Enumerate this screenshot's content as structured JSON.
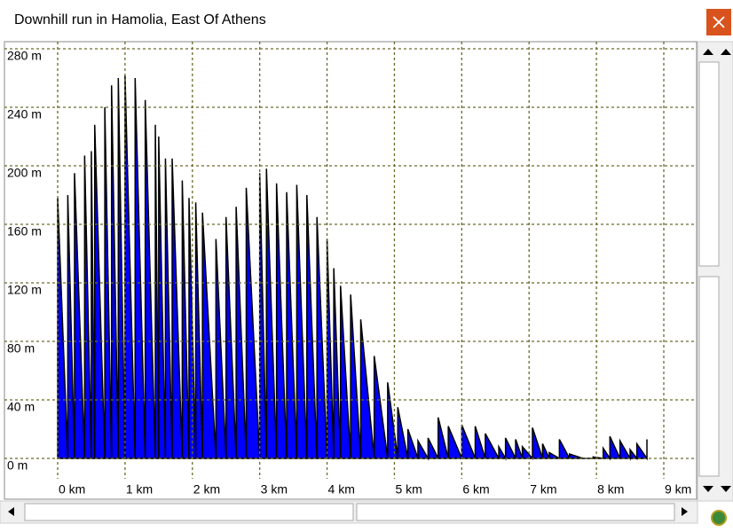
{
  "window_title": "Downhill run in Hamolia, East Of Athens",
  "chart_data": {
    "type": "area",
    "color": "#0000ff",
    "grid": true,
    "x": [
      0,
      0.15,
      0.25,
      0.4,
      0.5,
      0.55,
      0.7,
      0.8,
      0.9,
      1.0,
      1.15,
      1.3,
      1.45,
      1.5,
      1.6,
      1.7,
      1.85,
      1.95,
      2.05,
      2.15,
      2.35,
      2.5,
      2.65,
      2.8,
      3.0,
      3.1,
      3.25,
      3.4,
      3.55,
      3.7,
      3.85,
      4.0,
      4.1,
      4.2,
      4.35,
      4.5,
      4.7,
      4.9,
      5.05,
      5.2,
      5.35,
      5.5,
      5.65,
      5.8,
      6.0,
      6.2,
      6.35,
      6.55,
      6.65,
      6.8,
      6.9,
      7.05,
      7.2,
      7.3,
      7.45,
      7.6,
      7.8,
      7.95,
      8.1,
      8.2,
      8.35,
      8.5,
      8.6,
      8.75
    ],
    "values": [
      178,
      180,
      195,
      207,
      210,
      228,
      240,
      255,
      260,
      262,
      260,
      245,
      228,
      220,
      205,
      205,
      190,
      178,
      175,
      168,
      150,
      165,
      172,
      185,
      195,
      198,
      188,
      182,
      187,
      180,
      165,
      150,
      130,
      118,
      112,
      95,
      70,
      52,
      35,
      20,
      12,
      14,
      28,
      22,
      23,
      22,
      17,
      8,
      14,
      13,
      8,
      21,
      10,
      4,
      13,
      3,
      0,
      1,
      7,
      15,
      12,
      6,
      10,
      13
    ],
    "xlim": [
      0,
      9
    ],
    "xticks": [
      {
        "value": 0,
        "label": "0 km"
      },
      {
        "value": 1,
        "label": "1 km"
      },
      {
        "value": 2,
        "label": "2 km"
      },
      {
        "value": 3,
        "label": "3 km"
      },
      {
        "value": 4,
        "label": "4 km"
      },
      {
        "value": 5,
        "label": "5 km"
      },
      {
        "value": 6,
        "label": "6 km"
      },
      {
        "value": 7,
        "label": "7 km"
      },
      {
        "value": 8,
        "label": "8 km"
      },
      {
        "value": 9,
        "label": "9 km"
      }
    ],
    "ylim": [
      0,
      280
    ],
    "yticks": [
      {
        "value": 0,
        "label": "0 m"
      },
      {
        "value": 40,
        "label": "40 m"
      },
      {
        "value": 80,
        "label": "80 m"
      },
      {
        "value": 120,
        "label": "120 m"
      },
      {
        "value": 160,
        "label": "160 m"
      },
      {
        "value": 200,
        "label": "200 m"
      },
      {
        "value": 240,
        "label": "240 m"
      },
      {
        "value": 280,
        "label": "280 m"
      }
    ]
  }
}
